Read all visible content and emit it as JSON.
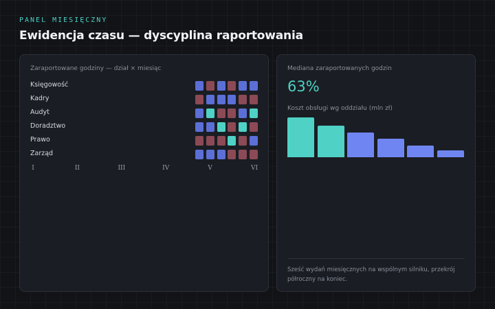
{
  "header": {
    "eyebrow": "PANEL MIESIĘCZNY",
    "title": "Ewidencja czasu — dyscyplina raportowania"
  },
  "colors": {
    "teal": "#4fd1c5",
    "blue": "#5b6fd6",
    "red": "#8b4a55",
    "bar_blue": "#6f86f2"
  },
  "chart_data": [
    {
      "type": "heatmap",
      "title": "Zaraportowane godziny — dział × miesiąc",
      "rows": [
        "Księgowość",
        "Kadry",
        "Audyt",
        "Doradztwo",
        "Prawo",
        "Zarząd"
      ],
      "columns": [
        "I",
        "II",
        "III",
        "IV",
        "V",
        "VI"
      ],
      "cells": [
        [
          "blue",
          "red",
          "blue",
          "red",
          "blue",
          "blue"
        ],
        [
          "red",
          "blue",
          "blue",
          "blue",
          "red",
          "red"
        ],
        [
          "blue",
          "teal",
          "red",
          "red",
          "blue",
          "teal"
        ],
        [
          "blue",
          "blue",
          "teal",
          "red",
          "teal",
          "red"
        ],
        [
          "red",
          "red",
          "red",
          "teal",
          "red",
          "blue"
        ],
        [
          "blue",
          "blue",
          "blue",
          "red",
          "red",
          "red"
        ]
      ]
    },
    {
      "type": "bar",
      "title": "Koszt obsługi wg oddziału (mln zł)",
      "values": [
        100,
        80,
        62,
        46,
        30,
        17
      ],
      "colors": [
        "teal",
        "teal",
        "blue",
        "blue",
        "blue",
        "blue"
      ],
      "ylim": [
        0,
        100
      ]
    }
  ],
  "kpi": {
    "label": "Mediana zaraportowanych godzin",
    "value": "63%"
  },
  "footnote": "Sześć wydań miesięcznych na wspólnym silniku, przekrój półroczny na koniec."
}
